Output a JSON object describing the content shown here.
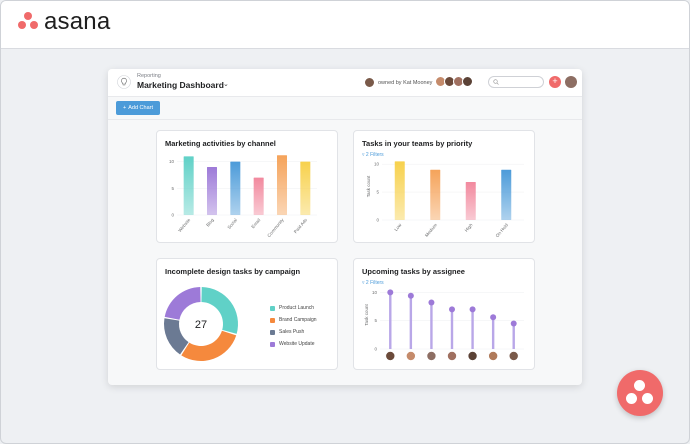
{
  "brand": {
    "name": "asana",
    "color": "#f06a6a"
  },
  "dashboard": {
    "breadcrumb": "Reporting",
    "title": "Marketing Dashboard",
    "owner_text": "owned by Kat Mooney",
    "search_placeholder": "",
    "add_chart_label": "Add Chart"
  },
  "cards": {
    "c1": {
      "title": "Marketing activities by channel"
    },
    "c2": {
      "title": "Tasks in your teams by priority",
      "filters": "2 Filters",
      "ylabel": "Task count"
    },
    "c3": {
      "title": "Incomplete design tasks by campaign",
      "center": "27"
    },
    "c4": {
      "title": "Upcoming tasks by assignee",
      "filters": "2 Filters",
      "ylabel": "Task count"
    }
  },
  "chart_data": [
    {
      "type": "bar",
      "title": "Marketing activities by channel",
      "categories": [
        "Website",
        "Blog",
        "Social",
        "Email",
        "Community",
        "Paid Ads"
      ],
      "values": [
        11,
        9,
        10,
        7,
        11.2,
        10
      ],
      "colors": [
        "#60d1c7",
        "#9d7ad8",
        "#4c9bd9",
        "#f2899e",
        "#f5a35a",
        "#f7d14c"
      ],
      "yticks": [
        0,
        5,
        10
      ],
      "ylim": [
        0,
        12
      ]
    },
    {
      "type": "bar",
      "title": "Tasks in your teams by priority",
      "categories": [
        "Low",
        "Medium",
        "High",
        "On Hold"
      ],
      "values": [
        10.5,
        9,
        6.8,
        9
      ],
      "colors": [
        "#f7d14c",
        "#f5a35a",
        "#f2899e",
        "#4c9bd9"
      ],
      "yticks": [
        0,
        5,
        10
      ],
      "ylim": [
        0,
        12
      ],
      "ylabel": "Task count"
    },
    {
      "type": "pie",
      "title": "Incomplete design tasks by campaign",
      "center_label": "27",
      "labels": [
        "Product Launch",
        "Brand Campaign",
        "Sales Push",
        "Website Update"
      ],
      "values": [
        8,
        8,
        5,
        6
      ],
      "colors": [
        "#60d1c7",
        "#f5893d",
        "#6b7a93",
        "#9d7ad8"
      ]
    },
    {
      "type": "bar",
      "title": "Upcoming tasks by assignee",
      "categories": [
        "",
        "",
        "",
        "",
        "",
        "",
        ""
      ],
      "values": [
        10,
        9.4,
        8.2,
        7,
        7,
        5.6,
        4.5
      ],
      "color": "#9d7ad8",
      "yticks": [
        0,
        5,
        10
      ],
      "ylim": [
        0,
        12
      ],
      "ylabel": "Task count"
    }
  ]
}
